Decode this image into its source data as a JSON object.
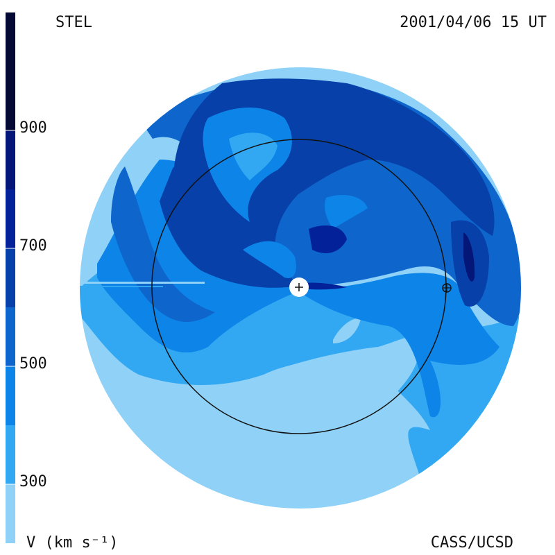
{
  "header": {
    "source": "STEL",
    "timestamp": "2001/04/06 15 UT"
  },
  "footer": {
    "unit": "V (km s⁻¹)",
    "credit": "CASS/UCSD"
  },
  "colorbar": {
    "min": 200,
    "max": 1100,
    "ticks": [
      "900",
      "700",
      "500",
      "300"
    ],
    "bands": [
      {
        "from": 200,
        "to": 300,
        "color": "#8fd1f7"
      },
      {
        "from": 300,
        "to": 400,
        "color": "#33a8f2"
      },
      {
        "from": 400,
        "to": 500,
        "color": "#0d84e8"
      },
      {
        "from": 500,
        "to": 600,
        "color": "#0e65cc"
      },
      {
        "from": 600,
        "to": 700,
        "color": "#0640a8"
      },
      {
        "from": 700,
        "to": 800,
        "color": "#03229a"
      },
      {
        "from": 800,
        "to": 900,
        "color": "#041778"
      },
      {
        "from": 900,
        "to": 1100,
        "color": "#050a35"
      }
    ]
  },
  "markers": {
    "sun": "sun-plus-marker",
    "earth": "earth-circle-plus-marker"
  }
}
